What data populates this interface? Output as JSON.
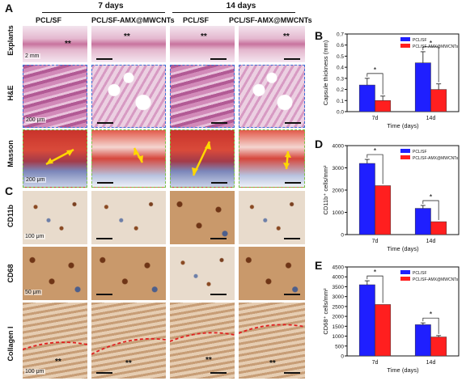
{
  "figure": {
    "panel_labels": {
      "A": "A",
      "B": "B",
      "C": "C",
      "D": "D",
      "E": "E"
    },
    "group_headers": {
      "d7": "7 days",
      "d14": "14 days"
    },
    "column_headers": [
      "PCL/SF",
      "PCL/SF-AMX@MWCNTs",
      "PCL/SF",
      "PCL/SF-AMX@MWCNTs"
    ],
    "row_labels": [
      "Explants",
      "H&E",
      "Masson",
      "CD11b",
      "CD68",
      "Collagen I"
    ],
    "scale_labels": {
      "explants": "2 mm",
      "he": "200 μm",
      "masson": "200 μm",
      "cd11b": "100 μm",
      "cd68": "50 μm",
      "collagen": "100 μm"
    },
    "asterisks": "**"
  },
  "chart_data": [
    {
      "type": "bar",
      "panel": "B",
      "categories": [
        "7d",
        "14d"
      ],
      "series": [
        {
          "name": "PCL/SF",
          "values": [
            0.24,
            0.44
          ],
          "errors": [
            0.06,
            0.1
          ],
          "color": "#1f1fff"
        },
        {
          "name": "PCL/SF-AMX@MWCNTs",
          "values": [
            0.1,
            0.2
          ],
          "errors": [
            0.04,
            0.05
          ],
          "color": "#ff1f1f"
        }
      ],
      "xlabel": "Time (days)",
      "ylabel": "Capsule thickness (mm)",
      "ylim": [
        0,
        0.7
      ],
      "yticks": [
        "0.0",
        "0.1",
        "0.2",
        "0.3",
        "0.4",
        "0.5",
        "0.6",
        "0.7"
      ],
      "significance": "*",
      "legend": "top-right"
    },
    {
      "type": "bar",
      "panel": "D",
      "categories": [
        "7d",
        "14d"
      ],
      "series": [
        {
          "name": "PCL/SF",
          "values": [
            3200,
            1180
          ],
          "errors": [
            180,
            130
          ],
          "color": "#1f1fff"
        },
        {
          "name": "PCL/SF-AMX@MWCNTs",
          "values": [
            2200,
            580
          ],
          "errors": [
            0,
            0
          ],
          "color": "#ff1f1f"
        }
      ],
      "xlabel": "Time (days)",
      "ylabel": "CD11b⁺ cells/mm²",
      "ylim": [
        0,
        4000
      ],
      "yticks": [
        "0",
        "1000",
        "2000",
        "3000",
        "4000"
      ],
      "significance": "*",
      "legend": "top-right"
    },
    {
      "type": "bar",
      "panel": "E",
      "categories": [
        "7d",
        "14d"
      ],
      "series": [
        {
          "name": "PCL/SF",
          "values": [
            3600,
            1580
          ],
          "errors": [
            200,
            90
          ],
          "color": "#1f1fff"
        },
        {
          "name": "PCL/SF-AMX@MWCNTs",
          "values": [
            2600,
            960
          ],
          "errors": [
            0,
            70
          ],
          "color": "#ff1f1f"
        }
      ],
      "xlabel": "Time (days)",
      "ylabel": "CD68⁺ cells/mm²",
      "ylim": [
        0,
        4500
      ],
      "yticks": [
        "0",
        "500",
        "1000",
        "1500",
        "2000",
        "2500",
        "3000",
        "3500",
        "4000",
        "4500"
      ],
      "significance": "*",
      "legend": "top-right"
    }
  ]
}
